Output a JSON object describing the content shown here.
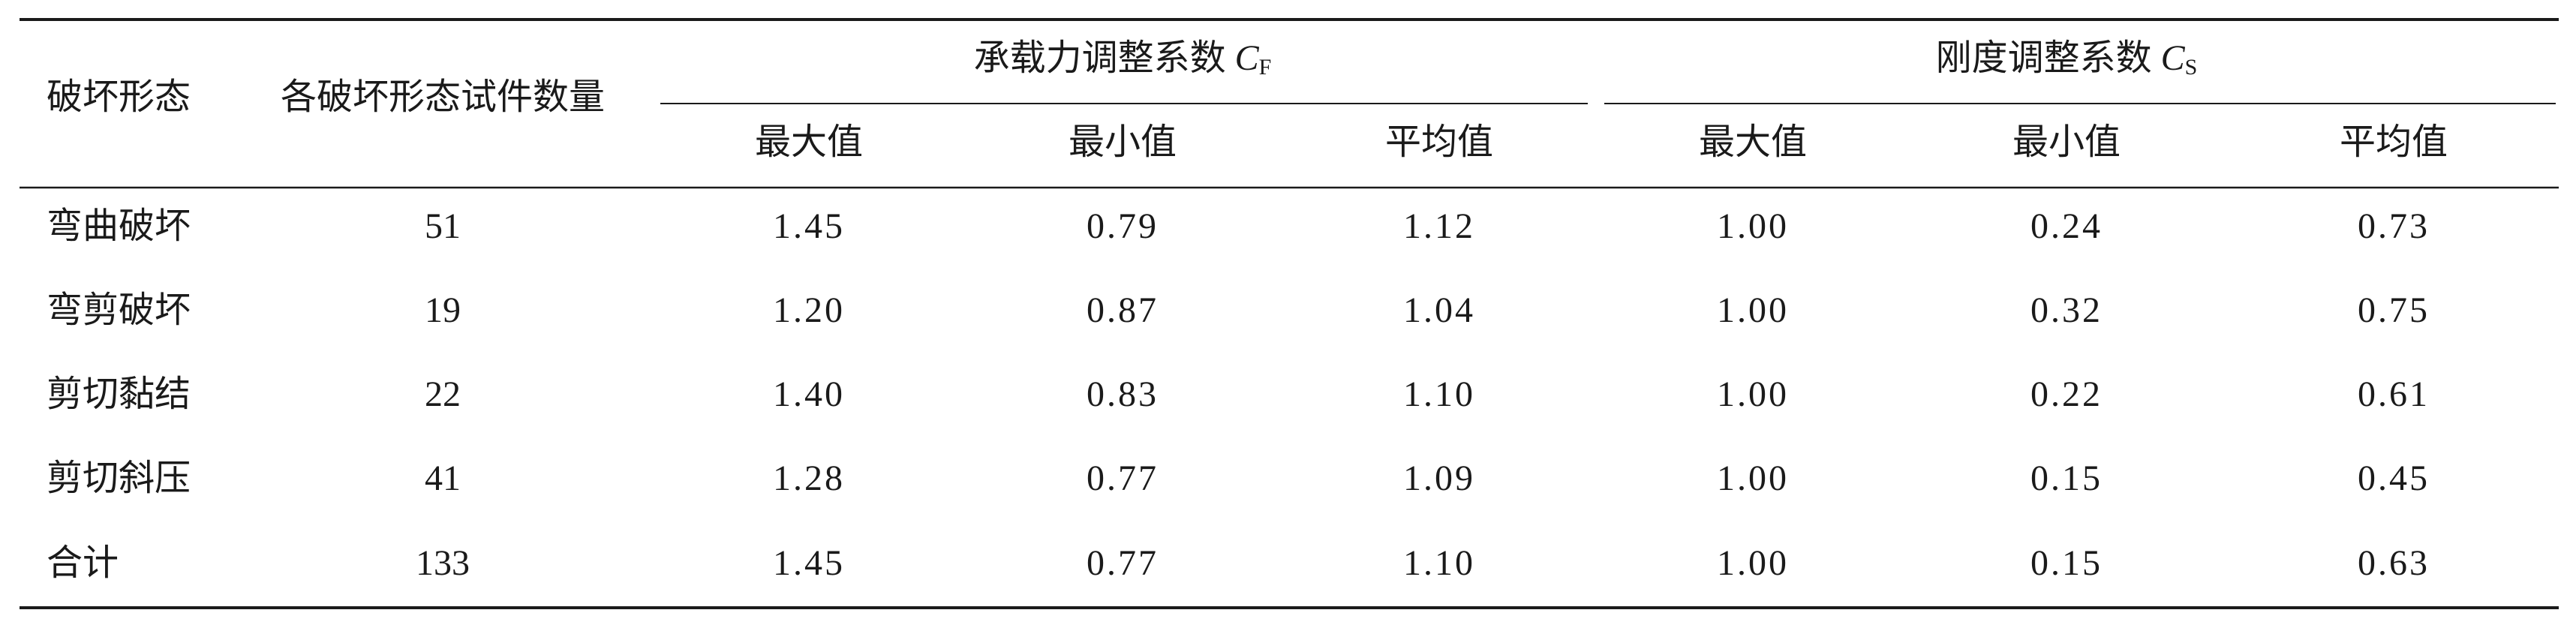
{
  "table": {
    "header": {
      "mode": "破坏形态",
      "count": "各破坏形态试件数量",
      "groups": [
        {
          "title": "承载力调整系数",
          "symbol": "C",
          "subscript": "F"
        },
        {
          "title": "刚度调整系数",
          "symbol": "C",
          "subscript": "S"
        }
      ],
      "subheaders": [
        "最大值",
        "最小值",
        "平均值",
        "最大值",
        "最小值",
        "平均值"
      ]
    },
    "rows": [
      [
        "弯曲破坏",
        "51",
        "1.45",
        "0.79",
        "1.12",
        "1.00",
        "0.24",
        "0.73"
      ],
      [
        "弯剪破坏",
        "19",
        "1.20",
        "0.87",
        "1.04",
        "1.00",
        "0.32",
        "0.75"
      ],
      [
        "剪切黏结",
        "22",
        "1.40",
        "0.83",
        "1.10",
        "1.00",
        "0.22",
        "0.61"
      ],
      [
        "剪切斜压",
        "41",
        "1.28",
        "0.77",
        "1.09",
        "1.00",
        "0.15",
        "0.45"
      ],
      [
        "合计",
        "133",
        "1.45",
        "0.77",
        "1.10",
        "1.00",
        "0.15",
        "0.63"
      ]
    ]
  }
}
